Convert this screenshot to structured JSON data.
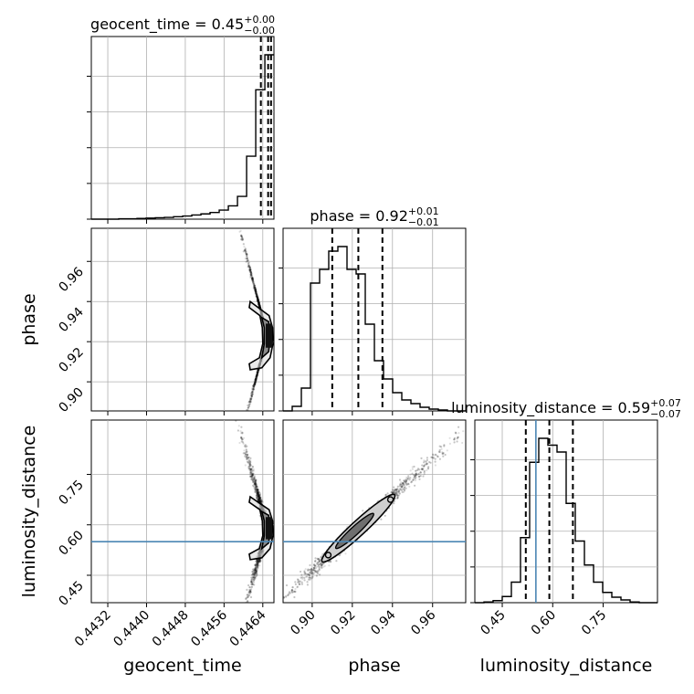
{
  "chart_data": {
    "type": "corner",
    "parameters": [
      "geocent_time",
      "phase",
      "luminosity_distance"
    ],
    "truths": {
      "luminosity_distance": 0.55
    },
    "truth_color": "#4b86b4",
    "panel_titles": [
      {
        "param": "geocent_time",
        "name": "geocent_time",
        "median": "0.45",
        "plus": "+0.00",
        "minus": "−0.00"
      },
      {
        "param": "phase",
        "name": "phase",
        "median": "0.92",
        "plus": "+0.01",
        "minus": "−0.01"
      },
      {
        "param": "luminosity_distance",
        "name": "luminosity_distance",
        "median": "0.59",
        "plus": "+0.07",
        "minus": "−0.07"
      }
    ],
    "axis_labels": {
      "geocent_time": "geocent_time",
      "phase": "phase",
      "luminosity_distance": "luminosity_distance"
    },
    "ranges": {
      "geocent_time": [
        0.44286,
        0.44663
      ],
      "phase": [
        0.8855,
        0.9765
      ],
      "luminosity_distance": [
        0.3685,
        0.9115
      ]
    },
    "ticks": {
      "geocent_time": {
        "values": [
          0.4432,
          0.444,
          0.4448,
          0.4456,
          0.4464
        ],
        "labels": [
          "0.4432",
          "0.4440",
          "0.4448",
          "0.4456",
          "0.4464"
        ]
      },
      "phase": {
        "values": [
          0.9,
          0.92,
          0.94,
          0.96
        ],
        "labels": [
          "0.90",
          "0.92",
          "0.94",
          "0.96"
        ]
      },
      "luminosity_distance": {
        "values": [
          0.45,
          0.6,
          0.75
        ],
        "labels": [
          "0.45",
          "0.60",
          "0.75"
        ]
      }
    },
    "quantile_lines": {
      "geocent_time": [
        0.44636,
        0.44651,
        0.44657
      ],
      "phase": [
        0.91,
        0.923,
        0.935
      ],
      "luminosity_distance": [
        0.52,
        0.59,
        0.66
      ]
    },
    "histograms": {
      "geocent_time": {
        "edges_start": 0.44286,
        "bin_width": 0.00018857,
        "counts": [
          0,
          0,
          0,
          1,
          1,
          2,
          3,
          4,
          5,
          7,
          9,
          12,
          15,
          19,
          26,
          38,
          65,
          180,
          370,
          470
        ]
      },
      "phase": {
        "edges_start": 0.8855,
        "bin_width": 0.00455,
        "counts": [
          0,
          5,
          25,
          140,
          155,
          175,
          180,
          155,
          150,
          95,
          55,
          35,
          20,
          12,
          8,
          4,
          2,
          1,
          0,
          0
        ]
      },
      "luminosity_distance": {
        "edges_start": 0.3685,
        "bin_width": 0.02715,
        "counts": [
          0,
          1,
          3,
          9,
          30,
          95,
          205,
          240,
          230,
          220,
          145,
          90,
          55,
          30,
          15,
          8,
          4,
          1,
          0,
          0
        ]
      }
    },
    "grid": true,
    "legend": "none"
  }
}
